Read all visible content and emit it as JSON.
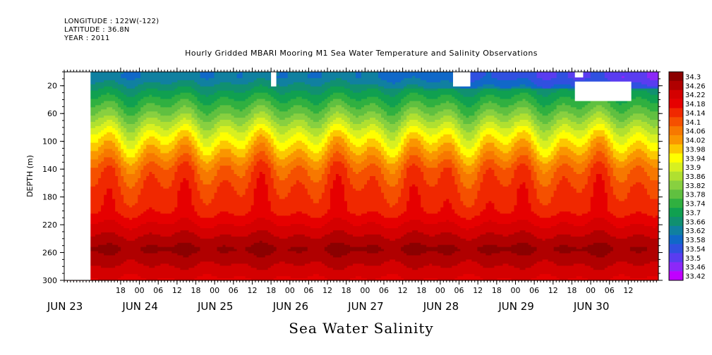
{
  "meta": {
    "longitude": "LONGITUDE : 122W(-122)",
    "latitude": "LATITUDE : 36.8N",
    "year": "YEAR : 2011"
  },
  "chart_data": {
    "type": "heatmap",
    "title": "Hourly Gridded MBARI Mooring M1 Sea Water Temperature and Salinity Observations",
    "xlabel": "Sea Water Salinity",
    "ylabel": "DEPTH (m)",
    "x_start_day": 23,
    "x_days": 7.9,
    "y_range": [
      0,
      300
    ],
    "y_ticks": [
      20,
      60,
      100,
      140,
      180,
      220,
      260,
      300
    ],
    "hour_ticks": [
      {
        "d": 23.75,
        "label": "18"
      },
      {
        "d": 24.0,
        "label": "00"
      },
      {
        "d": 24.25,
        "label": "06"
      },
      {
        "d": 24.5,
        "label": "12"
      },
      {
        "d": 24.75,
        "label": "18"
      },
      {
        "d": 25.0,
        "label": "00"
      },
      {
        "d": 25.25,
        "label": "06"
      },
      {
        "d": 25.5,
        "label": "12"
      },
      {
        "d": 25.75,
        "label": "18"
      },
      {
        "d": 26.0,
        "label": "00"
      },
      {
        "d": 26.25,
        "label": "06"
      },
      {
        "d": 26.5,
        "label": "12"
      },
      {
        "d": 26.75,
        "label": "18"
      },
      {
        "d": 27.0,
        "label": "00"
      },
      {
        "d": 27.25,
        "label": "06"
      },
      {
        "d": 27.5,
        "label": "12"
      },
      {
        "d": 27.75,
        "label": "18"
      },
      {
        "d": 28.0,
        "label": "00"
      },
      {
        "d": 28.25,
        "label": "06"
      },
      {
        "d": 28.5,
        "label": "12"
      },
      {
        "d": 28.75,
        "label": "18"
      },
      {
        "d": 29.0,
        "label": "00"
      },
      {
        "d": 29.25,
        "label": "06"
      },
      {
        "d": 29.5,
        "label": "12"
      },
      {
        "d": 29.75,
        "label": "18"
      },
      {
        "d": 30.0,
        "label": "00"
      },
      {
        "d": 30.25,
        "label": "06"
      },
      {
        "d": 30.5,
        "label": "12"
      }
    ],
    "day_labels": [
      {
        "d": 23.0,
        "label": "JUN 23"
      },
      {
        "d": 24.0,
        "label": "JUN 24"
      },
      {
        "d": 25.0,
        "label": "JUN 25"
      },
      {
        "d": 26.0,
        "label": "JUN 26"
      },
      {
        "d": 27.0,
        "label": "JUN 27"
      },
      {
        "d": 28.0,
        "label": "JUN 28"
      },
      {
        "d": 29.0,
        "label": "JUN 29"
      },
      {
        "d": 30.0,
        "label": "JUN 30"
      }
    ],
    "colorbar": {
      "levels": [
        "34.3",
        "34.26",
        "34.22",
        "34.18",
        "34.14",
        "34.1",
        "34.06",
        "34.02",
        "33.98",
        "33.94",
        "33.9",
        "33.86",
        "33.82",
        "33.78",
        "33.74",
        "33.7",
        "33.66",
        "33.62",
        "33.58",
        "33.54",
        "33.5",
        "33.46",
        "33.42"
      ],
      "colors": [
        "#8b0000",
        "#b00000",
        "#d40000",
        "#e60000",
        "#f02800",
        "#f55000",
        "#f77800",
        "#fa9600",
        "#fcc800",
        "#ffff00",
        "#d8f020",
        "#b0e030",
        "#88d040",
        "#60c040",
        "#30b040",
        "#10a050",
        "#109070",
        "#1080a0",
        "#1068c8",
        "#3050e0",
        "#5a3cf0",
        "#8c28f8",
        "#c000ff"
      ]
    },
    "profile": [
      {
        "depth": 8,
        "value": 33.62
      },
      {
        "depth": 30,
        "value": 33.7
      },
      {
        "depth": 60,
        "value": 33.8
      },
      {
        "depth": 90,
        "value": 33.92
      },
      {
        "depth": 115,
        "value": 34.0
      },
      {
        "depth": 140,
        "value": 34.08
      },
      {
        "depth": 170,
        "value": 34.12
      },
      {
        "depth": 200,
        "value": 34.14
      },
      {
        "depth": 225,
        "value": 34.2
      },
      {
        "depth": 255,
        "value": 34.27
      },
      {
        "depth": 280,
        "value": 34.22
      },
      {
        "depth": 300,
        "value": 34.18
      }
    ],
    "missing_data": [
      {
        "d0": 23.0,
        "d1": 23.35,
        "z0": 0,
        "z1": 300
      },
      {
        "d0": 25.75,
        "d1": 25.82,
        "z0": 0,
        "z1": 21
      },
      {
        "d0": 28.17,
        "d1": 28.4,
        "z0": 0,
        "z1": 21
      },
      {
        "d0": 29.79,
        "d1": 29.9,
        "z0": 0,
        "z1": 8
      },
      {
        "d0": 29.79,
        "d1": 30.54,
        "z0": 14,
        "z1": 42
      }
    ]
  }
}
